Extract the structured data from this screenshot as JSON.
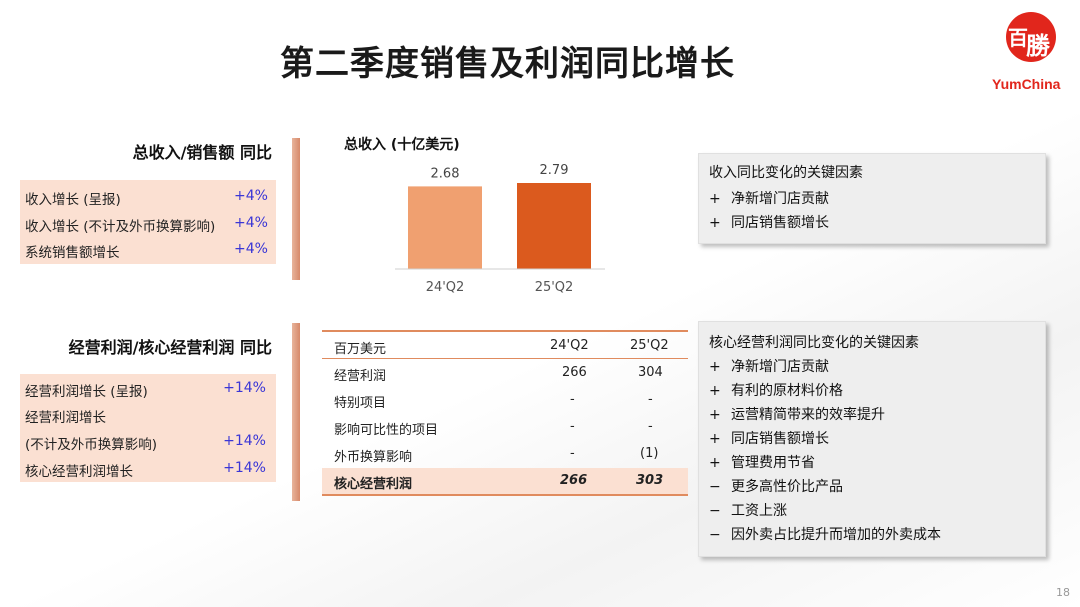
{
  "title": "第二季度销售及利润同比增长",
  "logo": {
    "char1": "百",
    "char2": "勝",
    "text": "YumChina",
    "color": "#e1261c"
  },
  "revenue_section": {
    "heading": "总收入/销售额 同比",
    "rows": [
      {
        "label": "收入增长 (呈报)",
        "value": "+4%"
      },
      {
        "label": "收入增长 (不计及外币换算影响)",
        "value": "+4%"
      },
      {
        "label": "系统销售额增长",
        "value": "+4%"
      }
    ]
  },
  "profit_section": {
    "heading": "经营利润/核心经营利润 同比",
    "rows": [
      {
        "label": "经营利润增长 (呈报)",
        "value": "+14%"
      },
      {
        "label": "经营利润增长",
        "value": ""
      },
      {
        "label": "(不计及外币换算影响)",
        "value": "+14%"
      },
      {
        "label": "核心经营利润增长",
        "value": "+14%"
      }
    ]
  },
  "chart_data": {
    "type": "bar",
    "title": "总收入 (十亿美元)",
    "categories": [
      "24'Q2",
      "25'Q2"
    ],
    "values": [
      2.68,
      2.79
    ],
    "value_labels": [
      "2.68",
      "2.79"
    ],
    "colors": [
      "#f0a070",
      "#db5a1e"
    ]
  },
  "revenue_factors": {
    "title": "收入同比变化的关键因素",
    "items": [
      {
        "sign": "+",
        "text": "净新增门店贡献"
      },
      {
        "sign": "+",
        "text": "同店销售额增长"
      }
    ]
  },
  "profit_table": {
    "headers": [
      "百万美元",
      "24'Q2",
      "25'Q2"
    ],
    "rows": [
      [
        "经营利润",
        "266",
        "304"
      ],
      [
        "特别项目",
        "-",
        "-"
      ],
      [
        "影响可比性的项目",
        "-",
        "-"
      ],
      [
        "外币换算影响",
        "-",
        "(1)"
      ]
    ],
    "total": [
      "核心经营利润",
      "266",
      "303"
    ]
  },
  "profit_factors": {
    "title": "核心经营利润同比变化的关键因素",
    "items": [
      {
        "sign": "+",
        "text": "净新增门店贡献"
      },
      {
        "sign": "+",
        "text": "有利的原材料价格"
      },
      {
        "sign": "+",
        "text": "运营精简带来的效率提升"
      },
      {
        "sign": "+",
        "text": "同店销售额增长"
      },
      {
        "sign": "+",
        "text": "管理费用节省"
      },
      {
        "sign": "−",
        "text": "更多高性价比产品"
      },
      {
        "sign": "−",
        "text": "工资上涨"
      },
      {
        "sign": "−",
        "text": "因外卖占比提升而增加的外卖成本"
      }
    ]
  },
  "page_number": "18"
}
